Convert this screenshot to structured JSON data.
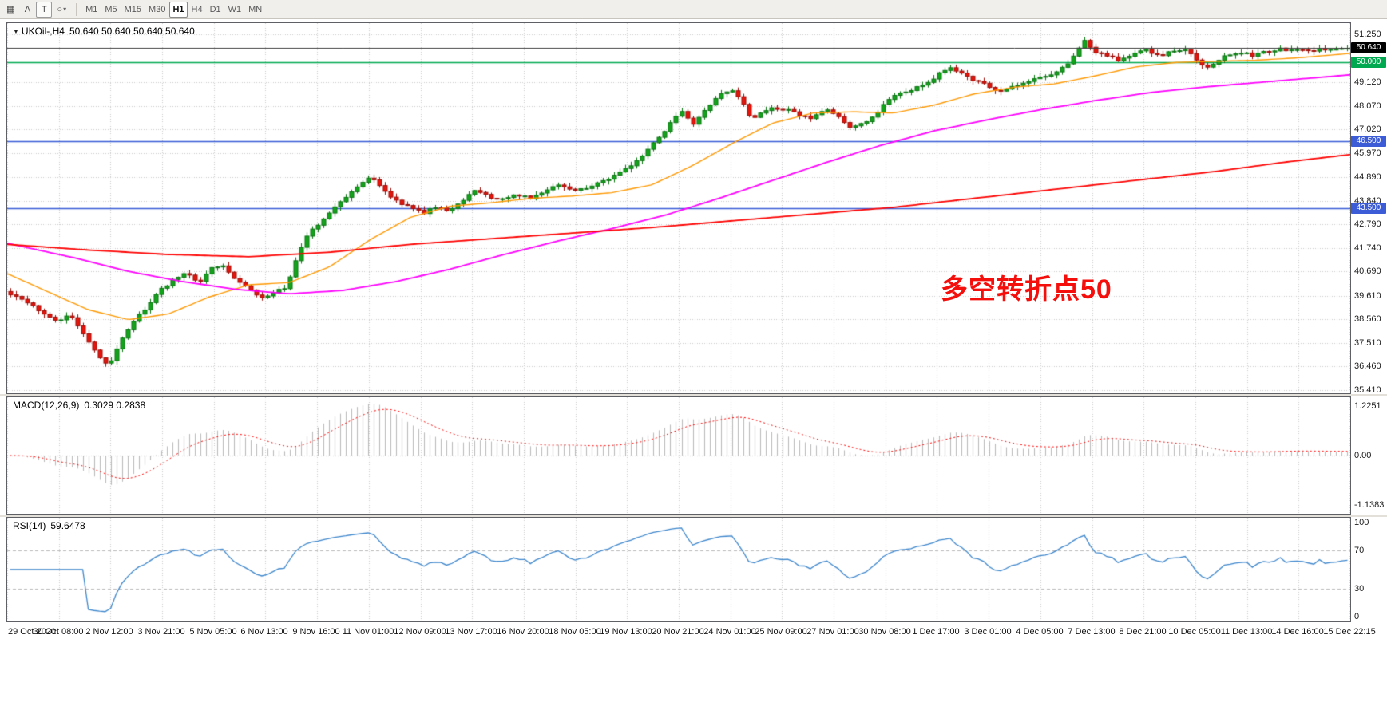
{
  "toolbar": {
    "tools": [
      {
        "label": "▦"
      },
      {
        "label": "A"
      },
      {
        "label": "T"
      },
      {
        "label": "○",
        "caret": "▾"
      }
    ],
    "timeframes": [
      "M1",
      "M5",
      "M15",
      "M30",
      "H1",
      "H4",
      "D1",
      "W1",
      "MN"
    ],
    "active_timeframe": "H1"
  },
  "chart": {
    "expander_icon": "▼",
    "title": "UKOil-,H4",
    "ohlc": "50.640 50.640 50.640 50.640"
  },
  "annotation": {
    "text": "多空转折点50",
    "color": "#f50f0c"
  },
  "main_axis": {
    "labels": [
      "51.250",
      "49.120",
      "48.070",
      "47.020",
      "45.970",
      "44.890",
      "43.840",
      "42.790",
      "41.740",
      "40.690",
      "39.610",
      "38.560",
      "37.510",
      "36.460",
      "35.410"
    ],
    "values": [
      51.25,
      49.12,
      48.07,
      47.02,
      45.97,
      44.89,
      43.84,
      42.79,
      41.74,
      40.69,
      39.61,
      38.56,
      37.51,
      36.46,
      35.41
    ]
  },
  "price_tags": [
    {
      "text": "50.640",
      "value": 50.64,
      "bg": "#000000"
    },
    {
      "text": "50.000",
      "value": 50.0,
      "bg": "#00a94f"
    },
    {
      "text": "46.500",
      "value": 46.5,
      "bg": "#3b5bd7"
    },
    {
      "text": "43.500",
      "value": 43.5,
      "bg": "#3b5bd7"
    }
  ],
  "indicators": {
    "macd": {
      "label": "MACD(12,26,9)",
      "values_text": "0.3029 0.2838",
      "axis_labels": [
        "1.2251",
        "0.00",
        "-1.1383"
      ]
    },
    "rsi": {
      "label": "RSI(14)",
      "value_text": "59.6478",
      "axis_labels": [
        "100",
        "70",
        "30",
        "0"
      ],
      "axis_values": [
        100,
        70,
        30,
        0
      ]
    }
  },
  "time_axis": [
    "29 Oct 2020",
    "30 Oct 08:00",
    "2 Nov 12:00",
    "3 Nov 21:00",
    "5 Nov 05:00",
    "6 Nov 13:00",
    "9 Nov 16:00",
    "11 Nov 01:00",
    "12 Nov 09:00",
    "13 Nov 17:00",
    "16 Nov 20:00",
    "18 Nov 05:00",
    "19 Nov 13:00",
    "20 Nov 21:00",
    "24 Nov 01:00",
    "25 Nov 09:00",
    "27 Nov 01:00",
    "30 Nov 08:00",
    "1 Dec 17:00",
    "3 Dec 01:00",
    "4 Dec 05:00",
    "7 Dec 13:00",
    "8 Dec 21:00",
    "10 Dec 05:00",
    "11 Dec 13:00",
    "14 Dec 16:00",
    "15 Dec 22:15"
  ],
  "colors": {
    "up_fill": "#12a51b",
    "up_border": "#0a7311",
    "down_fill": "#e6150d",
    "down_border": "#9c0c07",
    "ma_fast": "#ff9800",
    "ma_mid": "#ff00ff",
    "ma_slow": "#ff0000",
    "grid": "#c9c9c9",
    "macd_hist": "#b9b9b9",
    "macd_signal": "#ff0000",
    "rsi_line": "#3d86cc",
    "hline_green": "#00a94f",
    "hline_blue": "#3b5bd7",
    "current_line": "#3a3a3a"
  },
  "chart_data": {
    "type": "candlestick",
    "symbol": "UKOil-",
    "timeframe": "H4",
    "price_range": [
      35.41,
      51.25
    ],
    "current_price": 50.64,
    "candle_count": 240,
    "close_path": [
      [
        0.0,
        39.7
      ],
      [
        0.01,
        39.35
      ],
      [
        0.022,
        38.95
      ],
      [
        0.034,
        38.5
      ],
      [
        0.044,
        38.75
      ],
      [
        0.052,
        38.2
      ],
      [
        0.06,
        37.4
      ],
      [
        0.068,
        36.75
      ],
      [
        0.074,
        36.6
      ],
      [
        0.082,
        37.55
      ],
      [
        0.092,
        38.45
      ],
      [
        0.102,
        39.15
      ],
      [
        0.112,
        39.85
      ],
      [
        0.122,
        40.35
      ],
      [
        0.132,
        40.6
      ],
      [
        0.14,
        40.15
      ],
      [
        0.15,
        40.85
      ],
      [
        0.158,
        41.0
      ],
      [
        0.168,
        40.4
      ],
      [
        0.178,
        39.9
      ],
      [
        0.188,
        39.55
      ],
      [
        0.198,
        39.8
      ],
      [
        0.206,
        39.95
      ],
      [
        0.214,
        41.25
      ],
      [
        0.222,
        42.35
      ],
      [
        0.232,
        42.9
      ],
      [
        0.242,
        43.55
      ],
      [
        0.252,
        44.1
      ],
      [
        0.262,
        44.6
      ],
      [
        0.27,
        44.9
      ],
      [
        0.279,
        44.3
      ],
      [
        0.289,
        43.8
      ],
      [
        0.299,
        43.55
      ],
      [
        0.309,
        43.3
      ],
      [
        0.319,
        43.6
      ],
      [
        0.329,
        43.4
      ],
      [
        0.339,
        43.9
      ],
      [
        0.349,
        44.35
      ],
      [
        0.359,
        44.0
      ],
      [
        0.369,
        43.9
      ],
      [
        0.379,
        44.15
      ],
      [
        0.389,
        43.9
      ],
      [
        0.399,
        44.2
      ],
      [
        0.409,
        44.55
      ],
      [
        0.419,
        44.3
      ],
      [
        0.429,
        44.4
      ],
      [
        0.439,
        44.6
      ],
      [
        0.449,
        44.9
      ],
      [
        0.459,
        45.2
      ],
      [
        0.469,
        45.6
      ],
      [
        0.479,
        46.3
      ],
      [
        0.489,
        46.9
      ],
      [
        0.496,
        47.5
      ],
      [
        0.503,
        47.9
      ],
      [
        0.509,
        47.1
      ],
      [
        0.516,
        47.6
      ],
      [
        0.524,
        48.2
      ],
      [
        0.531,
        48.6
      ],
      [
        0.539,
        48.85
      ],
      [
        0.547,
        48.3
      ],
      [
        0.554,
        47.5
      ],
      [
        0.561,
        47.7
      ],
      [
        0.569,
        48.0
      ],
      [
        0.579,
        47.9
      ],
      [
        0.589,
        47.7
      ],
      [
        0.599,
        47.5
      ],
      [
        0.609,
        47.9
      ],
      [
        0.619,
        47.6
      ],
      [
        0.629,
        47.1
      ],
      [
        0.639,
        47.3
      ],
      [
        0.646,
        47.6
      ],
      [
        0.653,
        48.2
      ],
      [
        0.661,
        48.5
      ],
      [
        0.669,
        48.7
      ],
      [
        0.679,
        48.9
      ],
      [
        0.689,
        49.2
      ],
      [
        0.696,
        49.6
      ],
      [
        0.704,
        49.8
      ],
      [
        0.711,
        49.5
      ],
      [
        0.719,
        49.2
      ],
      [
        0.729,
        49.0
      ],
      [
        0.739,
        48.7
      ],
      [
        0.749,
        48.9
      ],
      [
        0.759,
        49.1
      ],
      [
        0.769,
        49.3
      ],
      [
        0.779,
        49.5
      ],
      [
        0.789,
        49.85
      ],
      [
        0.796,
        50.35
      ],
      [
        0.803,
        51.0
      ],
      [
        0.811,
        50.5
      ],
      [
        0.819,
        50.3
      ],
      [
        0.829,
        50.1
      ],
      [
        0.839,
        50.4
      ],
      [
        0.849,
        50.55
      ],
      [
        0.859,
        50.3
      ],
      [
        0.869,
        50.5
      ],
      [
        0.879,
        50.6
      ],
      [
        0.886,
        50.2
      ],
      [
        0.894,
        49.7
      ],
      [
        0.901,
        50.0
      ],
      [
        0.909,
        50.3
      ],
      [
        0.919,
        50.45
      ],
      [
        0.929,
        50.3
      ],
      [
        0.939,
        50.5
      ],
      [
        0.949,
        50.6
      ],
      [
        0.959,
        50.55
      ],
      [
        0.969,
        50.5
      ],
      [
        0.979,
        50.6
      ],
      [
        0.99,
        50.62
      ],
      [
        1.0,
        50.64
      ]
    ],
    "moving_averages": [
      {
        "name": "fast-ma-orange",
        "color": "#ff9800",
        "width": 1.4,
        "points": [
          [
            0,
            40.6
          ],
          [
            0.03,
            39.8
          ],
          [
            0.06,
            39.0
          ],
          [
            0.09,
            38.55
          ],
          [
            0.12,
            38.8
          ],
          [
            0.15,
            39.55
          ],
          [
            0.18,
            40.1
          ],
          [
            0.21,
            40.2
          ],
          [
            0.24,
            40.9
          ],
          [
            0.27,
            42.1
          ],
          [
            0.3,
            43.1
          ],
          [
            0.33,
            43.6
          ],
          [
            0.36,
            43.75
          ],
          [
            0.39,
            43.95
          ],
          [
            0.42,
            44.05
          ],
          [
            0.45,
            44.2
          ],
          [
            0.48,
            44.55
          ],
          [
            0.51,
            45.4
          ],
          [
            0.54,
            46.4
          ],
          [
            0.57,
            47.3
          ],
          [
            0.6,
            47.75
          ],
          [
            0.63,
            47.8
          ],
          [
            0.66,
            47.75
          ],
          [
            0.69,
            48.1
          ],
          [
            0.72,
            48.6
          ],
          [
            0.75,
            48.9
          ],
          [
            0.78,
            49.05
          ],
          [
            0.81,
            49.4
          ],
          [
            0.84,
            49.8
          ],
          [
            0.87,
            50.0
          ],
          [
            0.9,
            50.05
          ],
          [
            0.93,
            50.1
          ],
          [
            0.96,
            50.2
          ],
          [
            1.0,
            50.4
          ]
        ]
      },
      {
        "name": "mid-ma-magenta",
        "color": "#ff00ff",
        "width": 1.8,
        "points": [
          [
            0,
            41.95
          ],
          [
            0.05,
            41.3
          ],
          [
            0.09,
            40.7
          ],
          [
            0.13,
            40.25
          ],
          [
            0.17,
            39.9
          ],
          [
            0.21,
            39.7
          ],
          [
            0.25,
            39.85
          ],
          [
            0.29,
            40.25
          ],
          [
            0.33,
            40.8
          ],
          [
            0.37,
            41.45
          ],
          [
            0.41,
            42.05
          ],
          [
            0.45,
            42.6
          ],
          [
            0.49,
            43.2
          ],
          [
            0.53,
            43.95
          ],
          [
            0.57,
            44.75
          ],
          [
            0.61,
            45.55
          ],
          [
            0.65,
            46.3
          ],
          [
            0.69,
            46.95
          ],
          [
            0.73,
            47.45
          ],
          [
            0.77,
            47.9
          ],
          [
            0.81,
            48.3
          ],
          [
            0.85,
            48.65
          ],
          [
            0.89,
            48.9
          ],
          [
            0.93,
            49.1
          ],
          [
            0.97,
            49.3
          ],
          [
            1.0,
            49.45
          ]
        ]
      },
      {
        "name": "slow-ma-red",
        "color": "#ff0000",
        "width": 1.8,
        "points": [
          [
            0,
            41.9
          ],
          [
            0.06,
            41.65
          ],
          [
            0.12,
            41.45
          ],
          [
            0.18,
            41.35
          ],
          [
            0.24,
            41.55
          ],
          [
            0.3,
            41.9
          ],
          [
            0.36,
            42.15
          ],
          [
            0.42,
            42.4
          ],
          [
            0.48,
            42.65
          ],
          [
            0.54,
            42.95
          ],
          [
            0.6,
            43.25
          ],
          [
            0.66,
            43.55
          ],
          [
            0.72,
            43.95
          ],
          [
            0.78,
            44.35
          ],
          [
            0.84,
            44.75
          ],
          [
            0.9,
            45.15
          ],
          [
            0.95,
            45.55
          ],
          [
            1.0,
            45.9
          ]
        ]
      }
    ],
    "horizontal_lines": [
      {
        "value": 50.64,
        "color": "#3a3a3a",
        "label": "50.640",
        "width": 1
      },
      {
        "value": 50.0,
        "color": "#00a94f",
        "label": "50.000",
        "width": 1.5
      },
      {
        "value": 46.5,
        "color": "#3b5bd7",
        "label": "46.500",
        "width": 1.5
      },
      {
        "value": 43.5,
        "color": "#3b5bd7",
        "label": "43.500",
        "width": 1.5
      }
    ],
    "indicators": {
      "macd": {
        "fast": 12,
        "slow": 26,
        "signal": 9,
        "last_main": 0.3029,
        "last_signal": 0.2838,
        "range": [
          -1.1383,
          1.2251
        ]
      },
      "rsi": {
        "period": 14,
        "last": 59.6478,
        "levels": [
          30,
          70
        ],
        "range": [
          0,
          100
        ]
      }
    }
  }
}
